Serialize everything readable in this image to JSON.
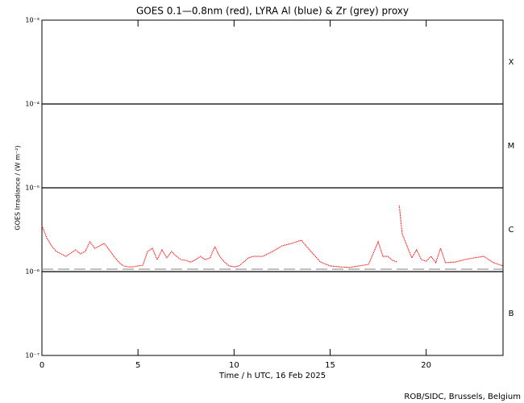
{
  "chart_data": {
    "type": "line",
    "title": "GOES 0.1—0.8nm (red), LYRA Al (blue) & Zr (grey) proxy",
    "x_label": "Time / h UTC, 16 Feb 2025",
    "y_label": "GOES Irradiance / (W m⁻²)",
    "footer": "ROB/SIDC, Brussels, Belgium",
    "log_y": true,
    "xlim": [
      0,
      24
    ],
    "xticks": [
      0,
      5,
      10,
      15,
      20
    ],
    "ylim": [
      1e-07,
      0.001
    ],
    "yticks": [
      {
        "value": 1e-07,
        "label": "10⁻⁷"
      },
      {
        "value": 1e-06,
        "label": "10⁻⁶"
      },
      {
        "value": 1e-05,
        "label": "10⁻⁵"
      },
      {
        "value": 0.0001,
        "label": "10⁻⁴"
      },
      {
        "value": 0.001,
        "label": "10⁻³"
      }
    ],
    "hlines": [
      0.0001,
      1e-05,
      1e-06
    ],
    "flare_classes": [
      "X",
      "M",
      "C",
      "B"
    ],
    "series": [
      {
        "color": "#ff0000",
        "x": [
          0,
          0.25,
          0.5,
          0.75,
          1,
          1.25,
          1.5,
          1.75,
          2,
          2.25,
          2.5,
          2.75,
          3,
          3.25,
          3.5,
          3.75,
          4,
          4.25,
          4.5,
          4.75,
          5,
          5.25,
          5.5,
          5.75,
          6,
          6.25,
          6.5,
          6.75,
          7,
          7.25,
          7.5,
          7.75,
          8,
          8.25,
          8.5,
          8.75,
          9,
          9.25,
          9.5,
          9.75,
          10,
          10.25,
          10.5,
          10.75,
          11,
          11.5,
          12,
          12.5,
          13,
          13.5,
          13.75,
          14,
          14.5,
          15,
          15.5,
          16,
          16.5,
          17,
          17.5,
          17.75,
          18,
          18.25,
          18.5,
          18.55,
          18.6,
          18.75,
          19,
          19.25,
          19.5,
          19.75,
          20,
          20.25,
          20.5,
          20.75,
          21,
          21.5,
          22,
          22.5,
          23,
          23.5,
          24
        ],
        "values": [
          3.53e-06,
          2.53e-06,
          2.03e-06,
          1.74e-06,
          1.63e-06,
          1.52e-06,
          1.66e-06,
          1.82e-06,
          1.63e-06,
          1.74e-06,
          2.27e-06,
          1.9e-06,
          2.03e-06,
          2.17e-06,
          1.82e-06,
          1.52e-06,
          1.3e-06,
          1.17e-06,
          1.14e-06,
          1.14e-06,
          1.17e-06,
          1.19e-06,
          1.74e-06,
          1.9e-06,
          1.39e-06,
          1.82e-06,
          1.46e-06,
          1.74e-06,
          1.52e-06,
          1.39e-06,
          1.36e-06,
          1.3e-06,
          1.39e-06,
          1.52e-06,
          1.39e-06,
          1.46e-06,
          1.99e-06,
          1.52e-06,
          1.3e-06,
          1.17e-06,
          1.14e-06,
          1.17e-06,
          1.3e-06,
          1.46e-06,
          1.52e-06,
          1.52e-06,
          1.74e-06,
          2.03e-06,
          2.17e-06,
          2.37e-06,
          2.03e-06,
          1.74e-06,
          1.3e-06,
          1.17e-06,
          1.14e-06,
          1.12e-06,
          1.17e-06,
          1.22e-06,
          2.27e-06,
          1.52e-06,
          1.52e-06,
          1.36e-06,
          1.3e-06,
          null,
          6.14e-06,
          2.83e-06,
          2.03e-06,
          1.46e-06,
          1.82e-06,
          1.39e-06,
          1.33e-06,
          1.52e-06,
          1.28e-06,
          1.9e-06,
          1.28e-06,
          1.3e-06,
          1.39e-06,
          1.46e-06,
          1.52e-06,
          1.28e-06,
          1.17e-06
        ]
      },
      {
        "color": "#808080",
        "dashed": true,
        "x": [
          0,
          24
        ],
        "values": [
          1.07e-06,
          1.07e-06
        ]
      }
    ]
  }
}
